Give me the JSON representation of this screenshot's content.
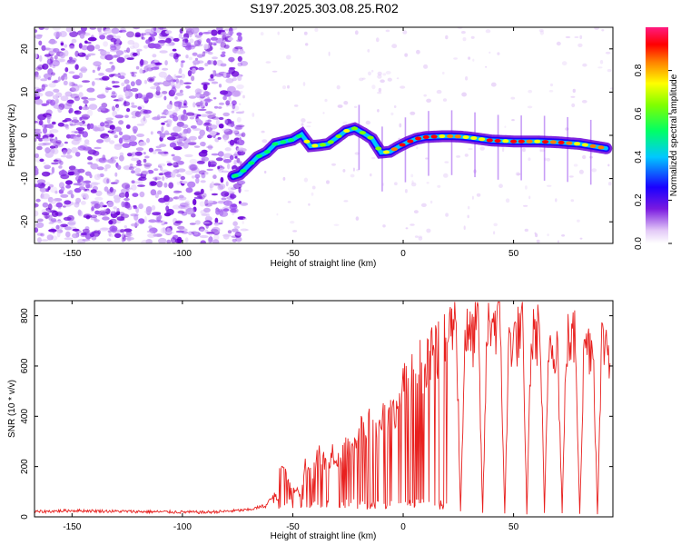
{
  "title": "S197.2025.303.08.25.R02",
  "colors": {
    "snr_line": "#e8201e",
    "scatter_purple": "#7a1ae0",
    "frame": "#000000"
  },
  "chart_data": [
    {
      "type": "heatmap",
      "name": "spectrogram",
      "xlabel": "Height of straight line (km)",
      "ylabel": "Frequency (Hz)",
      "xlim": [
        -167,
        95
      ],
      "ylim": [
        -25,
        25
      ],
      "xticks": [
        -150,
        -100,
        -50,
        0,
        50
      ],
      "yticks": [
        -20,
        -10,
        0,
        10,
        20
      ],
      "ridge": {
        "x": [
          -77,
          -74,
          -70,
          -66,
          -62,
          -58,
          -54,
          -50,
          -46,
          -42,
          -38,
          -34,
          -30,
          -26,
          -22,
          -18,
          -14,
          -10,
          -6,
          -2,
          2,
          6,
          10,
          14,
          18,
          22,
          26,
          30,
          40,
          50,
          60,
          70,
          80,
          92
        ],
        "y": [
          -9.5,
          -9,
          -7,
          -5,
          -4,
          -2,
          -1.5,
          -1,
          0.2,
          -2.5,
          -2.3,
          -2,
          -0.5,
          1,
          1.6,
          0.5,
          -0.8,
          -4,
          -3.8,
          -2.6,
          -1.6,
          -0.8,
          -0.4,
          -0.3,
          -0.2,
          -0.2,
          -0.3,
          -0.5,
          -1.2,
          -1.4,
          -1.4,
          -1.6,
          -2.0,
          -3.0
        ]
      },
      "colorbar": {
        "label": "Normalized spectral amplitude",
        "range": [
          0.0,
          1.0
        ],
        "ticks": [
          "0.0",
          "0.2",
          "0.4",
          "0.6",
          "0.8"
        ],
        "tick_values": [
          0.0,
          0.2,
          0.4,
          0.6,
          0.8
        ]
      }
    },
    {
      "type": "line",
      "name": "snr",
      "xlabel": "Height of straight line (km)",
      "ylabel": "SNR (10 * v/v)",
      "xlim": [
        -167,
        95
      ],
      "ylim": [
        0,
        860
      ],
      "xticks": [
        -150,
        -100,
        -50,
        0,
        50
      ],
      "yticks": [
        0,
        200,
        400,
        600,
        800
      ],
      "series": [
        {
          "name": "SNR",
          "x": [
            -167,
            -150,
            -130,
            -110,
            -90,
            -80,
            -70,
            -62,
            -58,
            -55,
            -52,
            -50,
            -47,
            -44,
            -41,
            -38,
            -35,
            -32,
            -29,
            -26,
            -23,
            -20,
            -17,
            -14,
            -11,
            -8,
            -5,
            -2,
            1,
            4,
            7,
            10,
            13,
            16,
            19,
            22,
            24,
            26,
            28,
            30,
            32,
            34,
            36,
            38,
            40,
            42,
            44,
            46,
            48,
            50,
            52,
            54,
            56,
            58,
            60,
            62,
            64,
            66,
            68,
            70,
            72,
            74,
            76,
            78,
            80,
            82,
            84,
            86,
            88,
            90,
            92,
            94
          ],
          "y": [
            20,
            25,
            22,
            20,
            18,
            22,
            28,
            45,
            90,
            230,
            160,
            120,
            90,
            210,
            170,
            280,
            200,
            260,
            230,
            300,
            250,
            380,
            330,
            400,
            360,
            420,
            400,
            470,
            530,
            560,
            610,
            590,
            640,
            660,
            700,
            760,
            820,
            20,
            740,
            700,
            720,
            760,
            15,
            730,
            800,
            770,
            760,
            15,
            720,
            700,
            720,
            750,
            15,
            700,
            720,
            740,
            15,
            700,
            690,
            680,
            15,
            700,
            690,
            720,
            15,
            700,
            680,
            700,
            15,
            690,
            700,
            640
          ]
        }
      ]
    }
  ]
}
